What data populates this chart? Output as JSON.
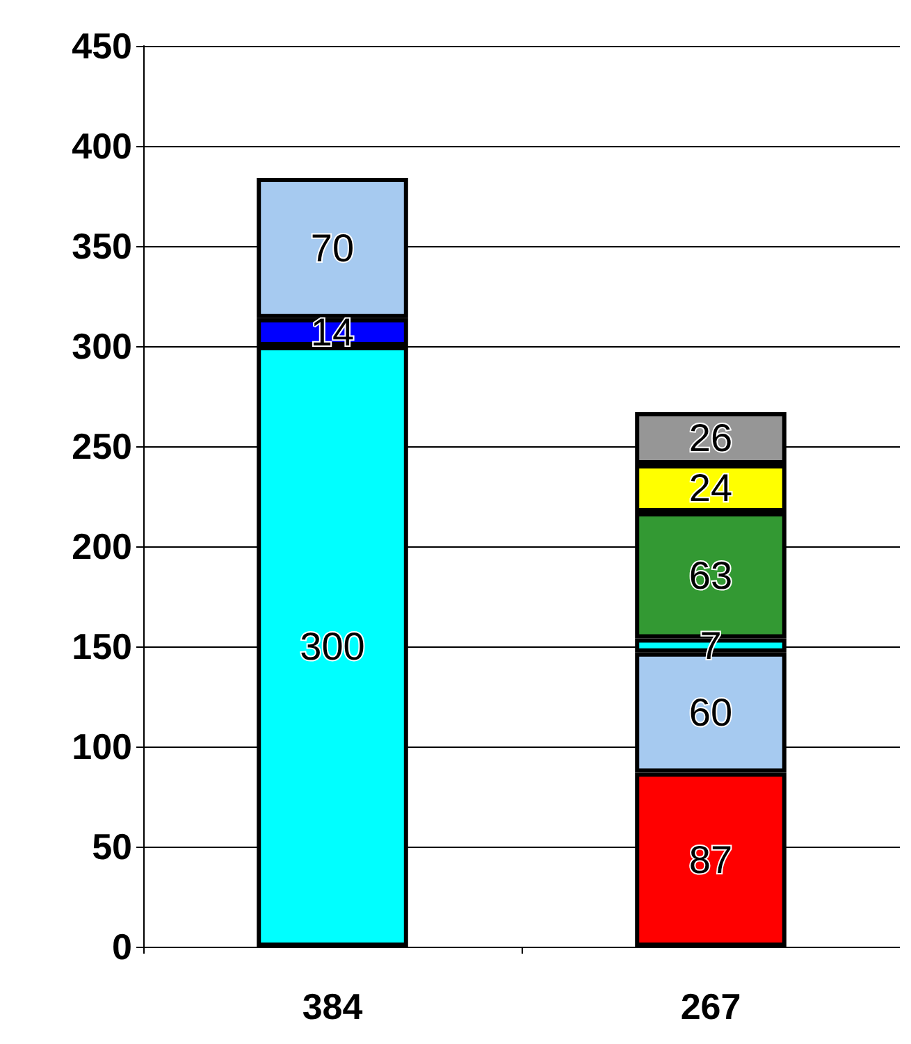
{
  "chart_data": {
    "type": "bar",
    "stacked": true,
    "categories": [
      "384",
      "267"
    ],
    "series": [
      {
        "color": "#00ffff",
        "values": [
          300,
          null
        ]
      },
      {
        "color": "#0000ff",
        "values": [
          14,
          null
        ]
      },
      {
        "color": "#a6caf0",
        "values": [
          70,
          null
        ]
      },
      {
        "color": "#ff0000",
        "values": [
          null,
          87
        ]
      },
      {
        "color": "#a6caf0",
        "values": [
          null,
          60
        ]
      },
      {
        "color": "#00ffff",
        "values": [
          null,
          7
        ]
      },
      {
        "color": "#339933",
        "values": [
          null,
          63
        ]
      },
      {
        "color": "#ffff00",
        "values": [
          null,
          24
        ]
      },
      {
        "color": "#969696",
        "values": [
          null,
          26
        ]
      }
    ],
    "ylim": [
      0,
      450
    ],
    "yticks": [
      0,
      50,
      100,
      150,
      200,
      250,
      300,
      350,
      400,
      450
    ],
    "grid": "y",
    "data_labels": true
  }
}
